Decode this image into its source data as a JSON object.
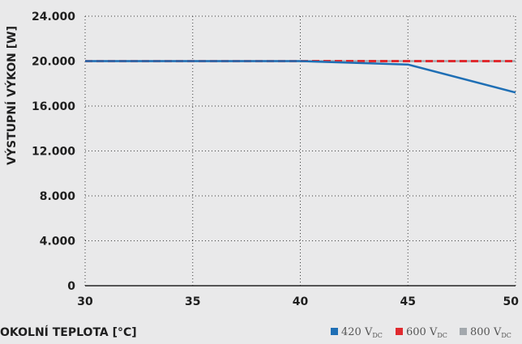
{
  "chart_data": {
    "type": "line",
    "xlabel": "OKOLNÍ TEPLOTA [°C]",
    "ylabel": "VÝSTUPNÍ VÝKON [W]",
    "xlim": [
      30,
      50
    ],
    "ylim": [
      0,
      24000
    ],
    "x_ticks": [
      30,
      35,
      40,
      45,
      50
    ],
    "x_tick_labels": [
      "30",
      "35",
      "40",
      "45",
      "50"
    ],
    "y_ticks": [
      0,
      4000,
      8000,
      12000,
      16000,
      20000,
      24000
    ],
    "y_tick_labels": [
      "0",
      "4.000",
      "8.000",
      "12.000",
      "16.000",
      "20.000",
      "24.000"
    ],
    "grid": true,
    "legend_position": "bottom-right",
    "series": [
      {
        "name": "420 V",
        "name_sub": "DC",
        "color": "#1f6fb5",
        "style": "solid",
        "x": [
          30,
          40,
          45,
          50
        ],
        "y": [
          20000,
          20000,
          19700,
          17200
        ]
      },
      {
        "name": "600 V",
        "name_sub": "DC",
        "color": "#e02a2f",
        "style": "dashed",
        "x": [
          30,
          50
        ],
        "y": [
          20000,
          20000
        ]
      },
      {
        "name": "800 V",
        "name_sub": "DC",
        "color": "#a3a8ad",
        "style": "solid",
        "x": [
          30,
          50
        ],
        "y": [
          20000,
          20000
        ]
      }
    ]
  }
}
